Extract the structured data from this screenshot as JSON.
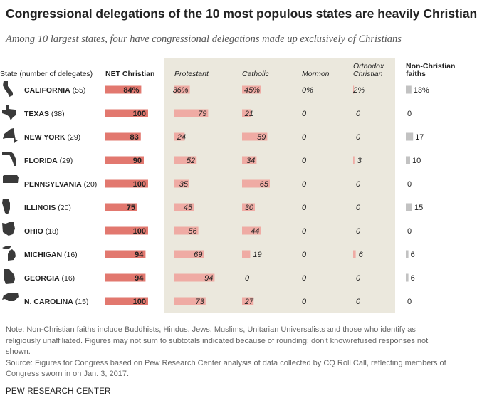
{
  "title": "Congressional delegations of the 10 most populous states are heavily Christian",
  "subtitle": "Among 10 largest states, four have congressional delegations made up exclusively of Christians",
  "note": "Note: Non-Christian faiths include Buddhists, Hindus, Jews, Muslims, Unitarian Universalists and those who identify as religiously unaffiliated. Figures may not sum to subtotals indicated because of rounding; don't know/refused responses not shown.",
  "source": "Source: Figures for Congress based on Pew Research Center analysis of data collected by CQ Roll Call, reflecting members of Congress sworn in on Jan. 3, 2017.",
  "footer": "PEW RESEARCH CENTER",
  "colors": {
    "net_bar": "#e2786f",
    "sub_bar": "#efaba4",
    "other_bar": "#c2c2c2",
    "shaded_panel": "#ebe8dd",
    "state_icon": "#3a3a3a"
  },
  "chart_data": {
    "type": "table",
    "row_header": "State (number of delegates)",
    "columns": [
      {
        "key": "net",
        "label": "NET Christian",
        "percent_first": "84%"
      },
      {
        "key": "protestant",
        "label": "Protestant",
        "percent_first": "36%"
      },
      {
        "key": "catholic",
        "label": "Catholic",
        "percent_first": "45%"
      },
      {
        "key": "mormon",
        "label": "Mormon",
        "percent_first": "0%"
      },
      {
        "key": "orthodox",
        "label": "Orthodox Christian",
        "label_lines": [
          "Orthodox",
          "Christian"
        ],
        "percent_first": "2%"
      },
      {
        "key": "other",
        "label": "Non-Christian faiths",
        "label_lines": [
          "Non-Christian",
          "faiths"
        ],
        "percent_first": "13%"
      }
    ],
    "rows": [
      {
        "state": "CALIFORNIA",
        "delegates": "(55)",
        "icon": "california-icon",
        "net": 84,
        "protestant": 36,
        "catholic": 45,
        "mormon": 0,
        "orthodox": 2,
        "other": 13
      },
      {
        "state": "TEXAS",
        "delegates": "(38)",
        "icon": "texas-icon",
        "net": 100,
        "protestant": 79,
        "catholic": 21,
        "mormon": 0,
        "orthodox": 0,
        "other": 0
      },
      {
        "state": "NEW YORK",
        "delegates": "(29)",
        "icon": "new-york-icon",
        "net": 83,
        "protestant": 24,
        "catholic": 59,
        "mormon": 0,
        "orthodox": 0,
        "other": 17
      },
      {
        "state": "FLORIDA",
        "delegates": "(29)",
        "icon": "florida-icon",
        "net": 90,
        "protestant": 52,
        "catholic": 34,
        "mormon": 0,
        "orthodox": 3,
        "other": 10
      },
      {
        "state": "PENNSYLVANIA",
        "delegates": "(20)",
        "icon": "pennsylvania-icon",
        "net": 100,
        "protestant": 35,
        "catholic": 65,
        "mormon": 0,
        "orthodox": 0,
        "other": 0
      },
      {
        "state": "ILLINOIS",
        "delegates": "(20)",
        "icon": "illinois-icon",
        "net": 75,
        "protestant": 45,
        "catholic": 30,
        "mormon": 0,
        "orthodox": 0,
        "other": 15
      },
      {
        "state": "OHIO",
        "delegates": "(18)",
        "icon": "ohio-icon",
        "net": 100,
        "protestant": 56,
        "catholic": 44,
        "mormon": 0,
        "orthodox": 0,
        "other": 0
      },
      {
        "state": "MICHIGAN",
        "delegates": "(16)",
        "icon": "michigan-icon",
        "net": 94,
        "protestant": 69,
        "catholic": 19,
        "mormon": 0,
        "orthodox": 6,
        "other": 6
      },
      {
        "state": "GEORGIA",
        "delegates": "(16)",
        "icon": "georgia-icon",
        "net": 94,
        "protestant": 94,
        "catholic": 0,
        "mormon": 0,
        "orthodox": 0,
        "other": 6
      },
      {
        "state": "N. CAROLINA",
        "delegates": "(15)",
        "icon": "north-carolina-icon",
        "net": 100,
        "protestant": 73,
        "catholic": 27,
        "mormon": 0,
        "orthodox": 0,
        "other": 0
      }
    ]
  }
}
